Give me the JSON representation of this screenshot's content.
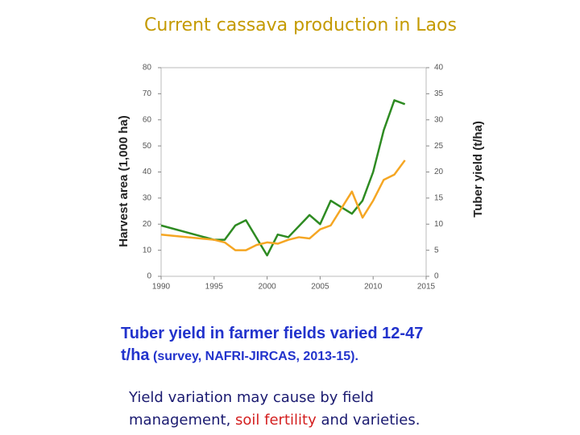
{
  "chart_data": {
    "type": "line",
    "title": "Current cassava production in Laos",
    "ylabel": "Harvest area (1,000 ha)",
    "y2label": "Tuber yield (t/ha)",
    "xlim": [
      1990,
      2015
    ],
    "xticks": [
      1990,
      1995,
      2000,
      2005,
      2010,
      2015
    ],
    "ylim": [
      0,
      80
    ],
    "yticks": [
      0,
      10,
      20,
      30,
      40,
      50,
      60,
      70,
      80
    ],
    "y2lim": [
      0,
      40
    ],
    "y2ticks": [
      0,
      5,
      10,
      15,
      20,
      25,
      30,
      35,
      40
    ],
    "series": [
      {
        "color": "#2e8b22",
        "axis": "y",
        "x": [
          1990,
          1995,
          1996,
          1997,
          1998,
          2000,
          2001,
          2002,
          2004,
          2005,
          2006,
          2008,
          2009,
          2010,
          2011,
          2012,
          2013
        ],
        "values": [
          19.5,
          14,
          14,
          19.5,
          21.5,
          8,
          16,
          15,
          23.5,
          20,
          29,
          24,
          29,
          40,
          56,
          67.5,
          66
        ]
      },
      {
        "color": "#f5a623",
        "axis": "y2",
        "x": [
          1990,
          1995,
          1996,
          1997,
          1998,
          1999,
          2000,
          2001,
          2002,
          2003,
          2004,
          2005,
          2006,
          2008,
          2009,
          2010,
          2011,
          2012,
          2013
        ],
        "values": [
          8,
          7,
          6.5,
          5,
          5,
          6,
          6.5,
          6.25,
          7,
          7.5,
          7.25,
          9,
          9.75,
          16.25,
          11.25,
          14.5,
          18.5,
          19.5,
          22.25
        ]
      }
    ]
  },
  "note": {
    "line1": "Tuber yield in farmer fields   varied 12-47",
    "unit": "t/ha",
    "source": "(survey, NAFRI-JIRCAS, 2013-15)."
  },
  "caption": {
    "line1": "Yield variation may cause by  field",
    "part1": "management, ",
    "part2": "soil fertility",
    "part3": " and varieties.",
    "highlight_color": "#d42020"
  }
}
